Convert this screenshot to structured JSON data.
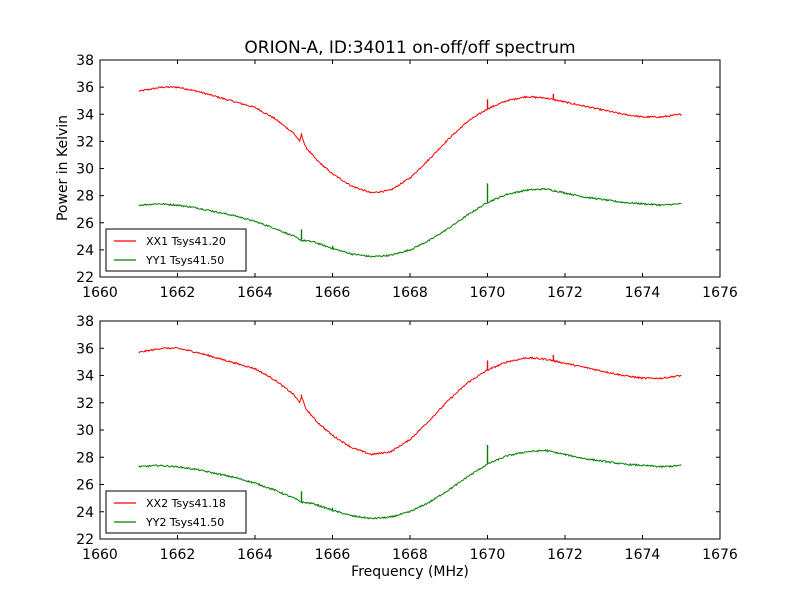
{
  "figure": {
    "title": "ORION-A, ID:34011 on-off/off spectrum",
    "ylabel": "Power in Kelvin",
    "xlabel": "Frequency (MHz)"
  },
  "chart_data": [
    {
      "type": "line",
      "title": "ORION-A, ID:34011 on-off/off spectrum",
      "ylabel": "Power in Kelvin",
      "xlabel": "",
      "xlim": [
        1660,
        1676
      ],
      "ylim": [
        22,
        38
      ],
      "xticks": [
        1660,
        1662,
        1664,
        1666,
        1668,
        1670,
        1672,
        1674,
        1676
      ],
      "yticks": [
        22,
        24,
        26,
        28,
        30,
        32,
        34,
        36,
        38
      ],
      "legend": "lower-left",
      "series": [
        {
          "name": "XX1 Tsys41.20",
          "color": "#ff0000",
          "points": [
            [
              1661.0,
              35.7
            ],
            [
              1661.3,
              35.85
            ],
            [
              1661.6,
              36.0
            ],
            [
              1662.0,
              36.0
            ],
            [
              1662.5,
              35.7
            ],
            [
              1663.0,
              35.3
            ],
            [
              1663.5,
              34.9
            ],
            [
              1664.0,
              34.5
            ],
            [
              1664.5,
              33.7
            ],
            [
              1665.0,
              32.6
            ],
            [
              1665.15,
              32.0
            ],
            [
              1665.2,
              32.5
            ],
            [
              1665.3,
              31.6
            ],
            [
              1665.6,
              30.6
            ],
            [
              1666.0,
              29.6
            ],
            [
              1666.5,
              28.7
            ],
            [
              1667.0,
              28.2
            ],
            [
              1667.5,
              28.4
            ],
            [
              1668.0,
              29.3
            ],
            [
              1668.5,
              30.7
            ],
            [
              1669.0,
              32.2
            ],
            [
              1669.5,
              33.5
            ],
            [
              1670.0,
              34.4
            ],
            [
              1670.5,
              35.0
            ],
            [
              1671.0,
              35.3
            ],
            [
              1671.5,
              35.2
            ],
            [
              1672.0,
              34.9
            ],
            [
              1672.5,
              34.6
            ],
            [
              1673.0,
              34.3
            ],
            [
              1673.5,
              34.0
            ],
            [
              1674.0,
              33.8
            ],
            [
              1674.5,
              33.8
            ],
            [
              1675.0,
              34.0
            ]
          ],
          "spikes": [
            [
              1665.2,
              32.6
            ],
            [
              1670.0,
              35.1
            ],
            [
              1671.7,
              35.5
            ]
          ]
        },
        {
          "name": "YY1 Tsys41.50",
          "color": "#008000",
          "points": [
            [
              1661.0,
              27.3
            ],
            [
              1661.5,
              27.4
            ],
            [
              1662.0,
              27.3
            ],
            [
              1662.5,
              27.1
            ],
            [
              1663.0,
              26.8
            ],
            [
              1663.5,
              26.5
            ],
            [
              1664.0,
              26.1
            ],
            [
              1664.5,
              25.6
            ],
            [
              1665.0,
              25.0
            ],
            [
              1665.2,
              24.7
            ],
            [
              1665.5,
              24.6
            ],
            [
              1666.0,
              24.1
            ],
            [
              1666.5,
              23.7
            ],
            [
              1667.0,
              23.5
            ],
            [
              1667.5,
              23.6
            ],
            [
              1668.0,
              24.0
            ],
            [
              1668.5,
              24.7
            ],
            [
              1669.0,
              25.6
            ],
            [
              1669.5,
              26.6
            ],
            [
              1670.0,
              27.5
            ],
            [
              1670.5,
              28.1
            ],
            [
              1671.0,
              28.4
            ],
            [
              1671.5,
              28.5
            ],
            [
              1672.0,
              28.2
            ],
            [
              1672.5,
              27.9
            ],
            [
              1673.0,
              27.7
            ],
            [
              1673.5,
              27.5
            ],
            [
              1674.0,
              27.4
            ],
            [
              1674.5,
              27.3
            ],
            [
              1675.0,
              27.4
            ]
          ],
          "spikes": [
            [
              1665.2,
              25.5
            ],
            [
              1666.0,
              24.3
            ],
            [
              1670.0,
              28.9
            ]
          ]
        }
      ]
    },
    {
      "type": "line",
      "title": "",
      "ylabel": "",
      "xlabel": "Frequency (MHz)",
      "xlim": [
        1660,
        1676
      ],
      "ylim": [
        22,
        38
      ],
      "xticks": [
        1660,
        1662,
        1664,
        1666,
        1668,
        1670,
        1672,
        1674,
        1676
      ],
      "yticks": [
        22,
        24,
        26,
        28,
        30,
        32,
        34,
        36,
        38
      ],
      "legend": "lower-left",
      "series": [
        {
          "name": "XX2 Tsys41.18",
          "color": "#ff0000",
          "points": [
            [
              1661.0,
              35.7
            ],
            [
              1661.3,
              35.85
            ],
            [
              1661.6,
              36.0
            ],
            [
              1662.0,
              36.0
            ],
            [
              1662.5,
              35.7
            ],
            [
              1663.0,
              35.3
            ],
            [
              1663.5,
              34.9
            ],
            [
              1664.0,
              34.5
            ],
            [
              1664.5,
              33.7
            ],
            [
              1665.0,
              32.6
            ],
            [
              1665.15,
              32.0
            ],
            [
              1665.2,
              32.5
            ],
            [
              1665.3,
              31.6
            ],
            [
              1665.6,
              30.6
            ],
            [
              1666.0,
              29.6
            ],
            [
              1666.5,
              28.7
            ],
            [
              1667.0,
              28.2
            ],
            [
              1667.5,
              28.4
            ],
            [
              1668.0,
              29.3
            ],
            [
              1668.5,
              30.7
            ],
            [
              1669.0,
              32.2
            ],
            [
              1669.5,
              33.5
            ],
            [
              1670.0,
              34.4
            ],
            [
              1670.5,
              35.0
            ],
            [
              1671.0,
              35.3
            ],
            [
              1671.5,
              35.2
            ],
            [
              1672.0,
              34.9
            ],
            [
              1672.5,
              34.6
            ],
            [
              1673.0,
              34.3
            ],
            [
              1673.5,
              34.0
            ],
            [
              1674.0,
              33.8
            ],
            [
              1674.5,
              33.8
            ],
            [
              1675.0,
              34.0
            ]
          ],
          "spikes": [
            [
              1665.2,
              32.6
            ],
            [
              1670.0,
              35.1
            ],
            [
              1671.7,
              35.5
            ]
          ]
        },
        {
          "name": "YY2 Tsys41.50",
          "color": "#008000",
          "points": [
            [
              1661.0,
              27.3
            ],
            [
              1661.5,
              27.4
            ],
            [
              1662.0,
              27.3
            ],
            [
              1662.5,
              27.1
            ],
            [
              1663.0,
              26.8
            ],
            [
              1663.5,
              26.5
            ],
            [
              1664.0,
              26.1
            ],
            [
              1664.5,
              25.6
            ],
            [
              1665.0,
              25.0
            ],
            [
              1665.2,
              24.7
            ],
            [
              1665.5,
              24.6
            ],
            [
              1666.0,
              24.1
            ],
            [
              1666.5,
              23.7
            ],
            [
              1667.0,
              23.5
            ],
            [
              1667.5,
              23.6
            ],
            [
              1668.0,
              24.0
            ],
            [
              1668.5,
              24.7
            ],
            [
              1669.0,
              25.6
            ],
            [
              1669.5,
              26.6
            ],
            [
              1670.0,
              27.5
            ],
            [
              1670.5,
              28.1
            ],
            [
              1671.0,
              28.4
            ],
            [
              1671.5,
              28.5
            ],
            [
              1672.0,
              28.2
            ],
            [
              1672.5,
              27.9
            ],
            [
              1673.0,
              27.7
            ],
            [
              1673.5,
              27.5
            ],
            [
              1674.0,
              27.4
            ],
            [
              1674.5,
              27.3
            ],
            [
              1675.0,
              27.4
            ]
          ],
          "spikes": [
            [
              1665.2,
              25.5
            ],
            [
              1666.0,
              24.3
            ],
            [
              1670.0,
              28.9
            ]
          ]
        }
      ]
    }
  ]
}
